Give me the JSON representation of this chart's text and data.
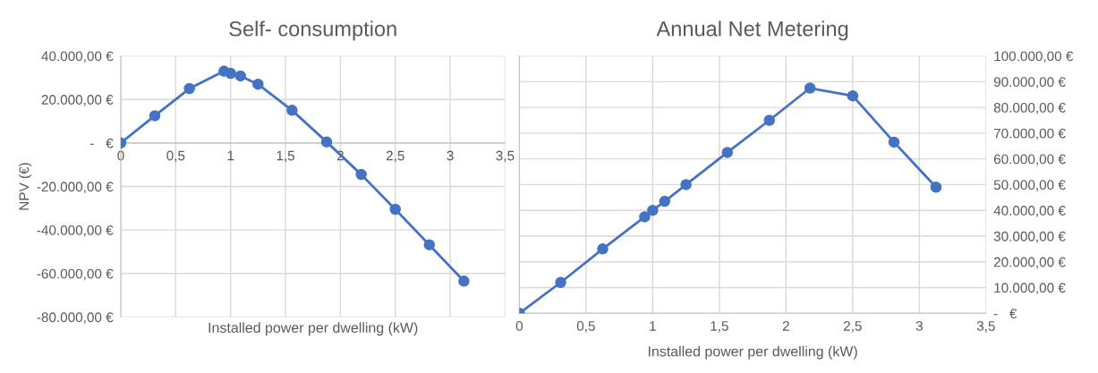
{
  "chart_data": [
    {
      "type": "line",
      "title": "Self- consumption",
      "xlabel": "Installed power per dwelling (kW)",
      "ylabel": "NPV (€)",
      "series": [
        {
          "color": "#4472c4",
          "x": [
            0,
            0.31,
            0.625,
            0.94,
            1.0,
            1.09,
            1.25,
            1.56,
            1.875,
            2.19,
            2.5,
            2.81,
            3.125
          ],
          "values": [
            0,
            12500,
            25000,
            33000,
            32000,
            30800,
            27000,
            15000,
            500,
            -14500,
            -30500,
            -46800,
            -63500
          ]
        }
      ],
      "xlim": [
        0,
        3.5
      ],
      "xticks": [
        0,
        {
          "value": 0.5,
          "label": "0,5"
        },
        1,
        {
          "value": 1.5,
          "label": "1,5"
        },
        2,
        {
          "value": 2.5,
          "label": "2,5"
        },
        3,
        {
          "value": 3.5,
          "label": "3,5"
        }
      ],
      "ylim": [
        -80000,
        40000
      ],
      "yticks": [
        {
          "value": -80000,
          "label": "-80.000,00 €"
        },
        {
          "value": -60000,
          "label": "-60.000,00 €"
        },
        {
          "value": -40000,
          "label": "-40.000,00 €"
        },
        {
          "value": -20000,
          "label": "-20.000,00 €"
        },
        {
          "value": 0,
          "label": "-   €"
        },
        {
          "value": 20000,
          "label": "20.000,00 €"
        },
        {
          "value": 40000,
          "label": "40.000,00 €"
        }
      ],
      "grid": true,
      "marker": "circle",
      "line_style": "solid"
    },
    {
      "type": "line",
      "title": "Annual Net Metering",
      "xlabel": "Installed power per dwelling (kW)",
      "series": [
        {
          "color": "#4472c4",
          "axis": "y2",
          "x": [
            0,
            0.31,
            0.625,
            0.94,
            1.0,
            1.09,
            1.25,
            1.56,
            1.875,
            2.18,
            2.5,
            2.81,
            3.125
          ],
          "values": [
            0,
            12000,
            25000,
            37500,
            40000,
            43500,
            50000,
            62500,
            75000,
            87500,
            84500,
            66500,
            49000
          ]
        }
      ],
      "xlim": [
        0,
        3.5
      ],
      "xticks": [
        0,
        {
          "value": 0.5,
          "label": "0,5"
        },
        1,
        {
          "value": 1.5,
          "label": "1,5"
        },
        2,
        {
          "value": 2.5,
          "label": "2,5"
        },
        3,
        {
          "value": 3.5,
          "label": "3,5"
        }
      ],
      "y2lim": [
        0,
        100000
      ],
      "y2ticks": [
        {
          "value": 0,
          "label": "-   €"
        },
        {
          "value": 10000,
          "label": "10.000,00 €"
        },
        {
          "value": 20000,
          "label": "20.000,00 €"
        },
        {
          "value": 30000,
          "label": "30.000,00 €"
        },
        {
          "value": 40000,
          "label": "40.000,00 €"
        },
        {
          "value": 50000,
          "label": "50.000,00 €"
        },
        {
          "value": 60000,
          "label": "60.000,00 €"
        },
        {
          "value": 70000,
          "label": "70.000,00 €"
        },
        {
          "value": 80000,
          "label": "80.000,00 €"
        },
        {
          "value": 90000,
          "label": "90.000,00 €"
        },
        {
          "value": 100000,
          "label": "100.000,00 €"
        }
      ],
      "grid": true,
      "marker": "circle",
      "line_style": "solid"
    }
  ]
}
